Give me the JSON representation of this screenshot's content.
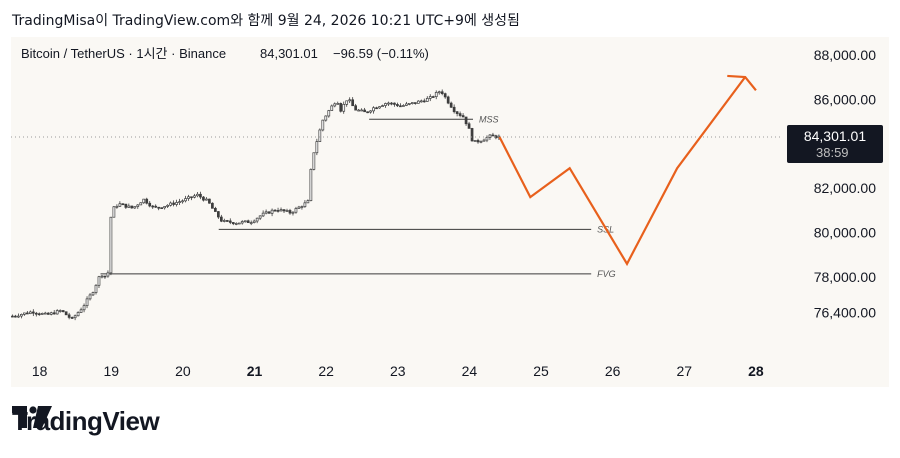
{
  "header": {
    "publish_line": "TradingMisa이 TradingView.com와 함께 9월 24, 2026 10:21 UTC+9에 생성됨"
  },
  "brand": {
    "name": "TradingView"
  },
  "colors": {
    "background": "#faf8f4",
    "candle": "#3d3d3d",
    "projection": "#e8601c",
    "level_line": "#3a3a3a",
    "price_label_bg": "#131722"
  },
  "chart_data": {
    "type": "candlestick",
    "symbol_line": "Bitcoin / TetherUS · 1시간 · Binance",
    "last_price": "84,301.01",
    "change": "−96.59 (−0.11%)",
    "countdown": "38:59",
    "ylim": [
      74500,
      88800
    ],
    "xlim": [
      17.6,
      28.35
    ],
    "y_ticks": [
      "88,000.00",
      "86,000.00",
      "82,000.00",
      "80,000.00",
      "78,000.00",
      "76,400.00"
    ],
    "y_tick_values": [
      88000,
      86000,
      82000,
      80000,
      78000,
      76400
    ],
    "x_ticks": [
      "18",
      "19",
      "20",
      "21",
      "22",
      "23",
      "24",
      "25",
      "26",
      "27",
      "28"
    ],
    "x_tick_values": [
      18,
      19,
      20,
      21,
      22,
      23,
      24,
      25,
      26,
      27,
      28
    ],
    "x_ticks_bold": [
      "21",
      "28"
    ],
    "price_path": [
      [
        17.62,
        76250
      ],
      [
        17.9,
        76450
      ],
      [
        18.1,
        76300
      ],
      [
        18.3,
        76500
      ],
      [
        18.45,
        76100
      ],
      [
        18.6,
        76650
      ],
      [
        18.75,
        77400
      ],
      [
        18.85,
        78150
      ],
      [
        18.95,
        78000
      ],
      [
        19.0,
        81000
      ],
      [
        19.1,
        81300
      ],
      [
        19.3,
        81100
      ],
      [
        19.45,
        81500
      ],
      [
        19.6,
        81100
      ],
      [
        19.8,
        81250
      ],
      [
        20.0,
        81450
      ],
      [
        20.2,
        81700
      ],
      [
        20.35,
        81400
      ],
      [
        20.45,
        80900
      ],
      [
        20.55,
        80500
      ],
      [
        20.75,
        80450
      ],
      [
        20.95,
        80500
      ],
      [
        21.1,
        80800
      ],
      [
        21.3,
        81050
      ],
      [
        21.5,
        80900
      ],
      [
        21.65,
        81200
      ],
      [
        21.75,
        81400
      ],
      [
        21.8,
        83300
      ],
      [
        21.95,
        85050
      ],
      [
        22.05,
        85550
      ],
      [
        22.15,
        86000
      ],
      [
        22.2,
        85500
      ],
      [
        22.3,
        86050
      ],
      [
        22.4,
        85550
      ],
      [
        22.55,
        85400
      ],
      [
        22.65,
        85600
      ],
      [
        22.85,
        85850
      ],
      [
        23.05,
        85700
      ],
      [
        23.25,
        85850
      ],
      [
        23.45,
        86050
      ],
      [
        23.6,
        86400
      ],
      [
        23.7,
        85900
      ],
      [
        23.8,
        85450
      ],
      [
        23.92,
        85200
      ],
      [
        24.0,
        84600
      ],
      [
        24.05,
        84050
      ],
      [
        24.15,
        84150
      ],
      [
        24.3,
        84350
      ],
      [
        24.42,
        84301
      ]
    ],
    "projection": [
      [
        24.42,
        84301
      ],
      [
        24.85,
        81600
      ],
      [
        25.4,
        82900
      ],
      [
        26.2,
        78600
      ],
      [
        26.9,
        82900
      ],
      [
        27.85,
        87000
      ]
    ],
    "arrow_tail": [
      [
        27.6,
        87050
      ],
      [
        27.85,
        87000
      ],
      [
        28.0,
        86400
      ]
    ],
    "levels": [
      {
        "label": "MSS",
        "y": 85100,
        "x_start": 22.6,
        "x_end": 24.05
      },
      {
        "label": "SSL",
        "y": 80150,
        "x_start": 20.5,
        "x_end": 25.7
      },
      {
        "label": "FVG",
        "y": 78150,
        "x_start": 18.85,
        "x_end": 25.7
      }
    ]
  }
}
